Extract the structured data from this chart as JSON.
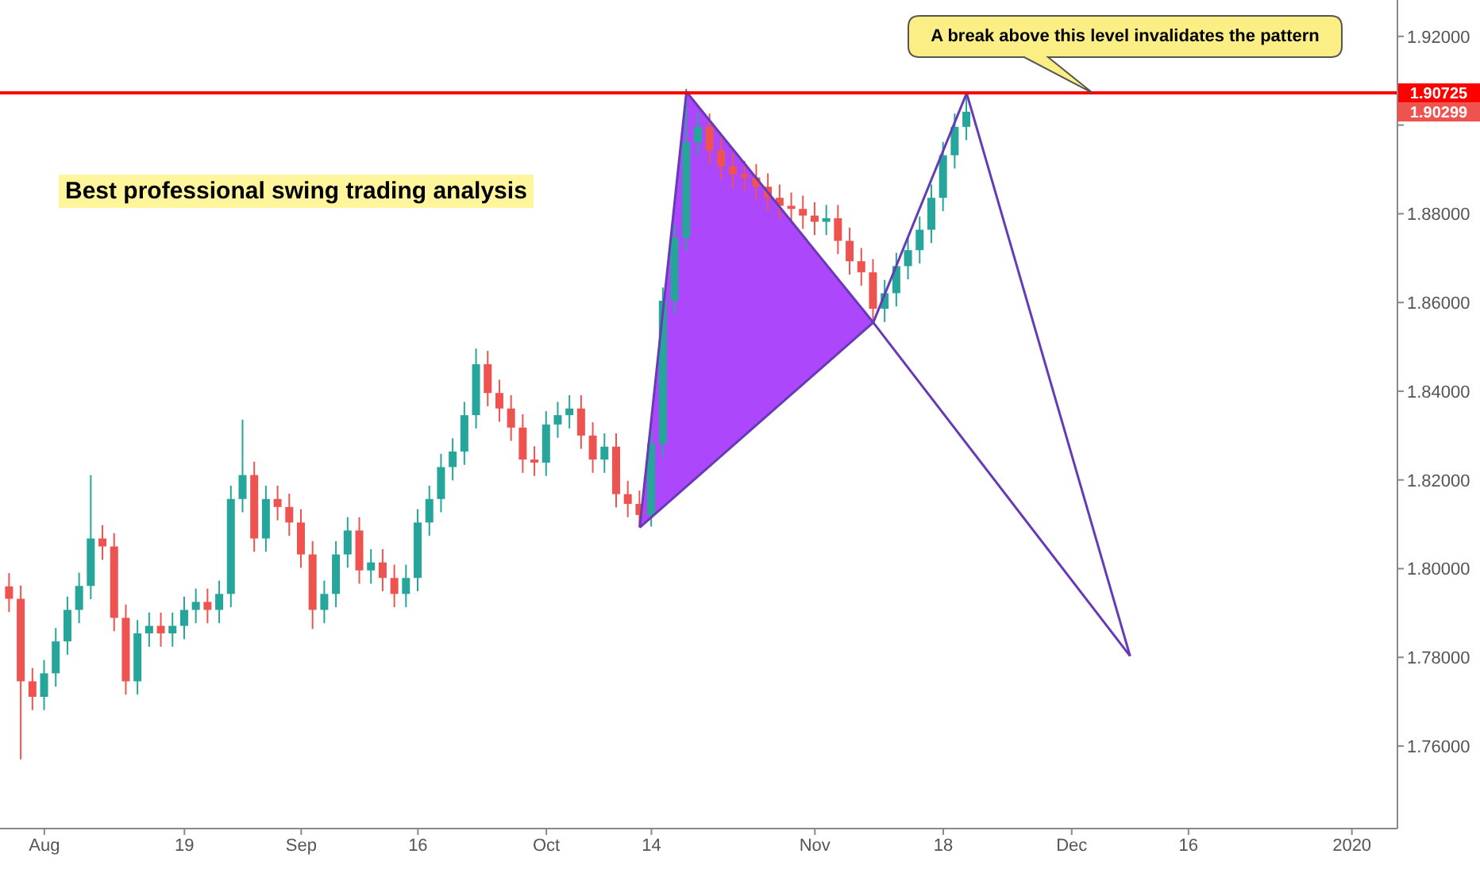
{
  "chart_data": {
    "type": "candlestick",
    "categories": [
      null,
      null,
      null,
      "Aug",
      null,
      null,
      null,
      null,
      null,
      null,
      null,
      null,
      null,
      null,
      null,
      "19",
      null,
      null,
      null,
      null,
      null,
      null,
      null,
      null,
      null,
      "Sep",
      null,
      null,
      null,
      null,
      null,
      null,
      null,
      null,
      null,
      "16",
      null,
      null,
      null,
      null,
      null,
      null,
      null,
      null,
      null,
      null,
      "Oct",
      null,
      null,
      null,
      null,
      null,
      null,
      null,
      null,
      "14",
      null,
      null,
      null,
      null,
      null,
      null,
      null,
      null,
      null,
      null,
      null,
      null,
      null,
      "Nov",
      null,
      null,
      null,
      null,
      null,
      null,
      null,
      null,
      null,
      null,
      "18",
      null,
      null,
      null,
      null,
      null,
      null,
      null,
      null,
      null,
      null,
      "Dec",
      null,
      null,
      null,
      null,
      null,
      null,
      null,
      null,
      null,
      "16",
      null,
      null,
      null,
      null,
      null,
      null,
      null,
      null,
      null,
      null,
      null,
      null,
      null,
      "2020",
      null,
      null,
      null,
      null
    ],
    "ohlc": [
      [
        1.796,
        1.799,
        1.7902,
        1.7932
      ],
      [
        1.7932,
        1.7962,
        1.757,
        1.7746
      ],
      [
        1.7746,
        1.7776,
        1.7681,
        1.7711
      ],
      [
        1.7711,
        1.7794,
        1.7681,
        1.7764
      ],
      [
        1.7764,
        1.7866,
        1.7734,
        1.7836
      ],
      [
        1.7836,
        1.7937,
        1.7806,
        1.7907
      ],
      [
        1.7907,
        1.7991,
        1.7877,
        1.7961
      ],
      [
        1.7961,
        1.8211,
        1.7931,
        1.8068
      ],
      [
        1.8068,
        1.8098,
        1.802,
        1.805
      ],
      [
        1.805,
        1.808,
        1.7859,
        1.7889
      ],
      [
        1.7889,
        1.7919,
        1.7716,
        1.7746
      ],
      [
        1.7746,
        1.7884,
        1.7716,
        1.7854
      ],
      [
        1.7854,
        1.7901,
        1.7824,
        1.7871
      ],
      [
        1.7871,
        1.7901,
        1.7824,
        1.7854
      ],
      [
        1.7854,
        1.7901,
        1.7824,
        1.7871
      ],
      [
        1.7871,
        1.7937,
        1.7841,
        1.7907
      ],
      [
        1.7907,
        1.7955,
        1.7877,
        1.7925
      ],
      [
        1.7925,
        1.7955,
        1.7877,
        1.7907
      ],
      [
        1.7907,
        1.7973,
        1.7877,
        1.7943
      ],
      [
        1.7943,
        1.8187,
        1.7913,
        1.8157
      ],
      [
        1.8157,
        1.8336,
        1.8127,
        1.8211
      ],
      [
        1.8211,
        1.8241,
        1.8038,
        1.8068
      ],
      [
        1.8068,
        1.8187,
        1.8038,
        1.8157
      ],
      [
        1.8157,
        1.8187,
        1.8109,
        1.8139
      ],
      [
        1.8139,
        1.8169,
        1.8074,
        1.8104
      ],
      [
        1.8104,
        1.8134,
        1.8002,
        1.8032
      ],
      [
        1.8032,
        1.8062,
        1.7864,
        1.7907
      ],
      [
        1.7907,
        1.7973,
        1.7877,
        1.7943
      ],
      [
        1.7943,
        1.8062,
        1.7913,
        1.8032
      ],
      [
        1.8032,
        1.8116,
        1.8002,
        1.8086
      ],
      [
        1.8086,
        1.8116,
        1.7966,
        1.7996
      ],
      [
        1.7996,
        1.8044,
        1.7966,
        1.8014
      ],
      [
        1.8014,
        1.8044,
        1.7949,
        1.7979
      ],
      [
        1.7979,
        1.8009,
        1.7913,
        1.7943
      ],
      [
        1.7943,
        1.8009,
        1.7913,
        1.7979
      ],
      [
        1.7979,
        1.8134,
        1.7949,
        1.8104
      ],
      [
        1.8104,
        1.8187,
        1.8074,
        1.8157
      ],
      [
        1.8157,
        1.8259,
        1.8127,
        1.8229
      ],
      [
        1.8229,
        1.8294,
        1.8199,
        1.8264
      ],
      [
        1.8264,
        1.8376,
        1.8234,
        1.8346
      ],
      [
        1.8346,
        1.8496,
        1.8316,
        1.8461
      ],
      [
        1.8461,
        1.8491,
        1.8366,
        1.8396
      ],
      [
        1.8396,
        1.8426,
        1.8331,
        1.8361
      ],
      [
        1.8361,
        1.8391,
        1.8288,
        1.8318
      ],
      [
        1.8318,
        1.8348,
        1.8216,
        1.8246
      ],
      [
        1.8246,
        1.8276,
        1.8209,
        1.8239
      ],
      [
        1.8239,
        1.8355,
        1.8209,
        1.8325
      ],
      [
        1.8325,
        1.8376,
        1.8295,
        1.8346
      ],
      [
        1.8346,
        1.8391,
        1.8316,
        1.8361
      ],
      [
        1.8361,
        1.8391,
        1.827,
        1.83
      ],
      [
        1.83,
        1.833,
        1.8216,
        1.8246
      ],
      [
        1.8246,
        1.8305,
        1.8216,
        1.8275
      ],
      [
        1.8275,
        1.8305,
        1.8138,
        1.8168
      ],
      [
        1.8168,
        1.8198,
        1.8116,
        1.8146
      ],
      [
        1.8146,
        1.8176,
        1.8093,
        1.8121
      ],
      [
        1.8121,
        1.8312,
        1.8095,
        1.8282
      ],
      [
        1.8282,
        1.8634,
        1.8252,
        1.8604
      ],
      [
        1.8604,
        1.8776,
        1.8574,
        1.8746
      ],
      [
        1.8746,
        1.9082,
        1.8716,
        1.8961
      ],
      [
        1.8961,
        1.9026,
        1.8931,
        1.8996
      ],
      [
        1.8996,
        1.9026,
        1.8913,
        1.8943
      ],
      [
        1.8943,
        1.8973,
        1.8877,
        1.8907
      ],
      [
        1.8907,
        1.8937,
        1.8859,
        1.8889
      ],
      [
        1.8889,
        1.8919,
        1.8852,
        1.8882
      ],
      [
        1.8882,
        1.8912,
        1.8831,
        1.8861
      ],
      [
        1.8861,
        1.8891,
        1.8806,
        1.8836
      ],
      [
        1.8836,
        1.8866,
        1.8788,
        1.8818
      ],
      [
        1.8818,
        1.8848,
        1.8781,
        1.8811
      ],
      [
        1.8811,
        1.8841,
        1.8766,
        1.8796
      ],
      [
        1.8796,
        1.8826,
        1.8752,
        1.8782
      ],
      [
        1.8782,
        1.882,
        1.8752,
        1.879
      ],
      [
        1.879,
        1.882,
        1.8709,
        1.8739
      ],
      [
        1.8739,
        1.8769,
        1.8663,
        1.8693
      ],
      [
        1.8693,
        1.8723,
        1.8638,
        1.8668
      ],
      [
        1.8668,
        1.8698,
        1.8555,
        1.8586
      ],
      [
        1.8586,
        1.8651,
        1.8556,
        1.8621
      ],
      [
        1.8621,
        1.8712,
        1.8591,
        1.8682
      ],
      [
        1.8682,
        1.8748,
        1.8652,
        1.8718
      ],
      [
        1.8718,
        1.8794,
        1.8688,
        1.8764
      ],
      [
        1.8764,
        1.8866,
        1.8734,
        1.8836
      ],
      [
        1.8836,
        1.8962,
        1.8806,
        1.8932
      ],
      [
        1.8932,
        1.9026,
        1.8902,
        1.8996
      ],
      [
        1.8996,
        1.9072,
        1.8966,
        1.903
      ],
      null,
      null,
      null,
      null,
      null,
      null,
      null,
      null,
      null,
      null,
      null,
      null,
      null,
      null,
      null,
      null,
      null,
      null,
      null,
      null,
      null,
      null,
      null,
      null,
      null,
      null,
      null,
      null,
      null,
      null,
      null,
      null,
      null,
      null,
      null,
      null,
      null
    ],
    "series": [
      {
        "type": "line",
        "color": "#673ab7",
        "values": [
          null,
          null,
          null,
          null,
          null,
          null,
          null,
          null,
          null,
          null,
          null,
          null,
          null,
          null,
          null,
          null,
          null,
          null,
          null,
          null,
          null,
          null,
          null,
          null,
          null,
          null,
          null,
          null,
          null,
          null,
          null,
          null,
          null,
          null,
          null,
          null,
          null,
          null,
          null,
          null,
          null,
          null,
          null,
          null,
          null,
          null,
          null,
          null,
          null,
          null,
          null,
          null,
          null,
          null,
          1.8093,
          null,
          null,
          null,
          1.9075,
          null,
          null,
          null,
          null,
          null,
          null,
          null,
          null,
          null,
          null,
          null,
          null,
          null,
          null,
          null,
          1.8555,
          null,
          null,
          null,
          null,
          null,
          null,
          null,
          1.9072,
          null,
          null,
          null,
          null,
          null,
          null,
          null,
          null,
          null,
          null,
          null,
          null,
          null,
          1.7803,
          null,
          null,
          null,
          null,
          null,
          null,
          null,
          null,
          null,
          null,
          null,
          null,
          null,
          null,
          null,
          null,
          null,
          null,
          null,
          null,
          null,
          null,
          null
        ]
      },
      {
        "type": "line",
        "color": "#673ab7",
        "values": [
          null,
          null,
          null,
          null,
          null,
          null,
          null,
          null,
          null,
          null,
          null,
          null,
          null,
          null,
          null,
          null,
          null,
          null,
          null,
          null,
          null,
          null,
          null,
          null,
          null,
          null,
          null,
          null,
          null,
          null,
          null,
          null,
          null,
          null,
          null,
          null,
          null,
          null,
          null,
          null,
          null,
          null,
          null,
          null,
          null,
          null,
          null,
          null,
          null,
          null,
          null,
          null,
          null,
          null,
          1.8093,
          null,
          null,
          null,
          null,
          null,
          null,
          null,
          null,
          null,
          null,
          null,
          null,
          null,
          null,
          null,
          null,
          null,
          null,
          null,
          1.8555,
          null,
          null,
          null,
          null,
          null,
          null,
          null,
          null,
          null,
          null,
          null,
          null,
          null,
          null,
          null,
          null,
          null,
          null,
          null,
          null,
          null,
          1.7803,
          null,
          null,
          null,
          null,
          null,
          null,
          null,
          null,
          null,
          null,
          null,
          null,
          null,
          null,
          null,
          null,
          null,
          null,
          null,
          null,
          null,
          null,
          null
        ]
      }
    ],
    "ylim": [
      1.7414,
      1.9282
    ],
    "yticks": [
      {
        "value": 1.76,
        "label": "1.76000"
      },
      {
        "value": 1.78,
        "label": "1.78000"
      },
      {
        "value": 1.8,
        "label": "1.80000"
      },
      {
        "value": 1.82,
        "label": "1.82000"
      },
      {
        "value": 1.84,
        "label": "1.84000"
      },
      {
        "value": 1.86,
        "label": "1.86000"
      },
      {
        "value": 1.88,
        "label": "1.88000"
      },
      {
        "value": 1.9,
        "label": null
      },
      {
        "value": 1.92,
        "label": "1.92000"
      }
    ],
    "ref_lines": [
      {
        "axis": "y",
        "value": 1.90725,
        "label": "1.90725",
        "color": "#ff0000"
      }
    ],
    "annotations": [
      {
        "text": "A break above this level invalidates the pattern",
        "y": 1.90725
      },
      "Best professional swing trading analysis",
      "1.90299"
    ]
  }
}
